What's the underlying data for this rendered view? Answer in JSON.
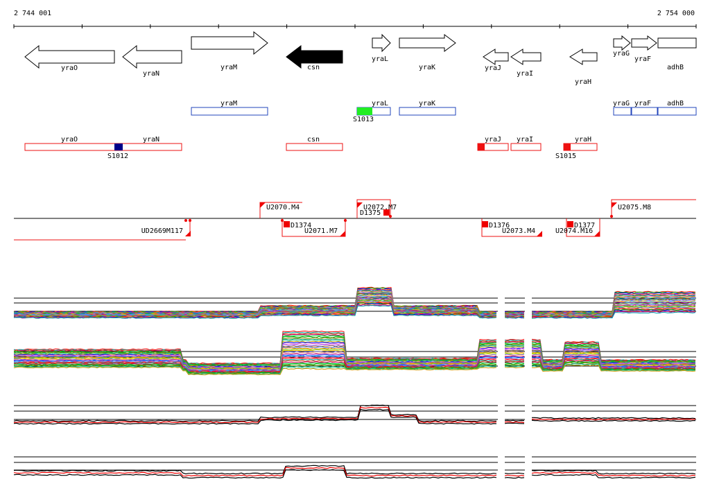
{
  "coords": {
    "start": "2 744 001",
    "end": "2 754 000"
  },
  "colors": {
    "bg": "#ffffff",
    "axis": "#000000",
    "operon_blue": "#2244bb",
    "unit_red": "#ee1111",
    "tss_red": "#ee0000",
    "promoter_green": "#22ee22",
    "promoter_navy": "#000088",
    "trace_black": "#000000",
    "trace_red": "#ee0000"
  },
  "genes": [
    {
      "name": "yraO",
      "strand": "-",
      "filled": false
    },
    {
      "name": "yraN",
      "strand": "-",
      "filled": false
    },
    {
      "name": "yraM",
      "strand": "+",
      "filled": false
    },
    {
      "name": "csn",
      "strand": "-",
      "filled": true
    },
    {
      "name": "yraL",
      "strand": "+",
      "filled": false
    },
    {
      "name": "yraK",
      "strand": "+",
      "filled": false
    },
    {
      "name": "yraJ",
      "strand": "-",
      "filled": false
    },
    {
      "name": "yraI",
      "strand": "-",
      "filled": false
    },
    {
      "name": "yraH",
      "strand": "-",
      "filled": false
    },
    {
      "name": "yraG",
      "strand": "+",
      "filled": false
    },
    {
      "name": "yraF",
      "strand": "+",
      "filled": false
    },
    {
      "name": "adhB",
      "strand": "+",
      "filled": false
    }
  ],
  "operons_plus": [
    {
      "label": "yraM"
    },
    {
      "label": "yraL"
    },
    {
      "label": "yraK"
    },
    {
      "label": "yraG"
    },
    {
      "label": "yraF"
    },
    {
      "label": "adhB"
    }
  ],
  "operons_minus": [
    {
      "label1": "yraO",
      "label2": "yraN"
    },
    {
      "label1": "csn"
    },
    {
      "label1": "yraJ"
    },
    {
      "label1": "yraI"
    },
    {
      "label1": "yraH"
    }
  ],
  "promoters": [
    {
      "label": "S1013",
      "color": "green"
    },
    {
      "label": "S1012",
      "color": "navy"
    },
    {
      "label": "S1015",
      "color": "red"
    }
  ],
  "units_top": [
    "U2070.M4",
    "U2072.M7",
    "D1375",
    "U2075.M8"
  ],
  "units_bottom": [
    "UD2669M117",
    "D1374",
    "U2071.M7",
    "D1376",
    "U2073.M4",
    "D1377",
    "U2074.M16"
  ]
}
